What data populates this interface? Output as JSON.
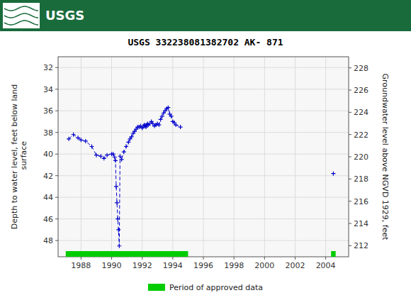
{
  "chart_data": {
    "type": "line",
    "title": "USGS 332238081382702 AK- 871",
    "annotations": [
      "USGS"
    ],
    "y_label": "Depth to water level, feet below land\n surface",
    "y2_label": "Groundwater level above NGVD 1929, feet",
    "xlim": [
      1986.5,
      2005.5
    ],
    "xticks": [
      1988,
      1990,
      1992,
      1994,
      1996,
      1998,
      2000,
      2002,
      2004
    ],
    "ylim": [
      49.5,
      31.0
    ],
    "yticks": [
      32,
      34,
      36,
      38,
      40,
      42,
      44,
      46,
      48
    ],
    "y2lim": [
      211.0,
      229.0
    ],
    "y2ticks": [
      212,
      214,
      216,
      218,
      220,
      222,
      224,
      226,
      228
    ],
    "grid": true,
    "legend": "bottom",
    "series": [
      {
        "color": "#0000cc",
        "line_style": "dashed",
        "marker": "plus",
        "x": [
          1987.2,
          1987.5,
          1987.8,
          1988.0,
          1988.3,
          1988.7,
          1989.0,
          1989.3,
          1989.5,
          1989.7,
          1990.0,
          1990.1,
          1990.2,
          1990.25,
          1990.3,
          1990.35,
          1990.4,
          1990.45,
          1990.5,
          1990.55,
          1990.65,
          1990.8,
          1990.95,
          1991.1,
          1991.2,
          1991.3,
          1991.4,
          1991.5,
          1991.6,
          1991.7,
          1991.8,
          1991.9,
          1992.0,
          1992.1,
          1992.15,
          1992.2,
          1992.25,
          1992.3,
          1992.35,
          1992.4,
          1992.5,
          1992.6,
          1992.7,
          1992.8,
          1992.9,
          1993.0,
          1993.1,
          1993.2,
          1993.3,
          1993.4,
          1993.5,
          1993.6,
          1993.7,
          1993.8,
          1993.9,
          1994.0,
          1994.1,
          1994.2,
          1994.5
        ],
        "values": [
          38.6,
          38.2,
          38.5,
          38.7,
          38.8,
          39.3,
          40.1,
          40.2,
          40.4,
          40.1,
          40.0,
          40.0,
          40.3,
          40.6,
          43.0,
          44.5,
          46.0,
          47.0,
          48.5,
          40.2,
          40.5,
          39.8,
          39.3,
          38.9,
          38.6,
          38.4,
          38.1,
          37.9,
          37.7,
          37.5,
          37.5,
          37.4,
          37.6,
          37.4,
          37.3,
          37.4,
          37.5,
          37.3,
          37.2,
          37.3,
          37.2,
          37.0,
          37.2,
          37.4,
          37.3,
          37.2,
          37.3,
          36.8,
          36.5,
          36.2,
          36.0,
          35.8,
          35.7,
          36.3,
          36.5,
          37.0,
          37.1,
          37.3,
          37.5
        ]
      },
      {
        "color": "#0000cc",
        "line_style": "none",
        "marker": "plus",
        "x": [
          2004.5
        ],
        "values": [
          41.8
        ]
      }
    ],
    "approved_periods": {
      "name": "Period of approved data",
      "color": "#00cc00",
      "ranges": [
        [
          1987.0,
          1995.0
        ],
        [
          2004.35,
          2004.65
        ]
      ]
    }
  }
}
